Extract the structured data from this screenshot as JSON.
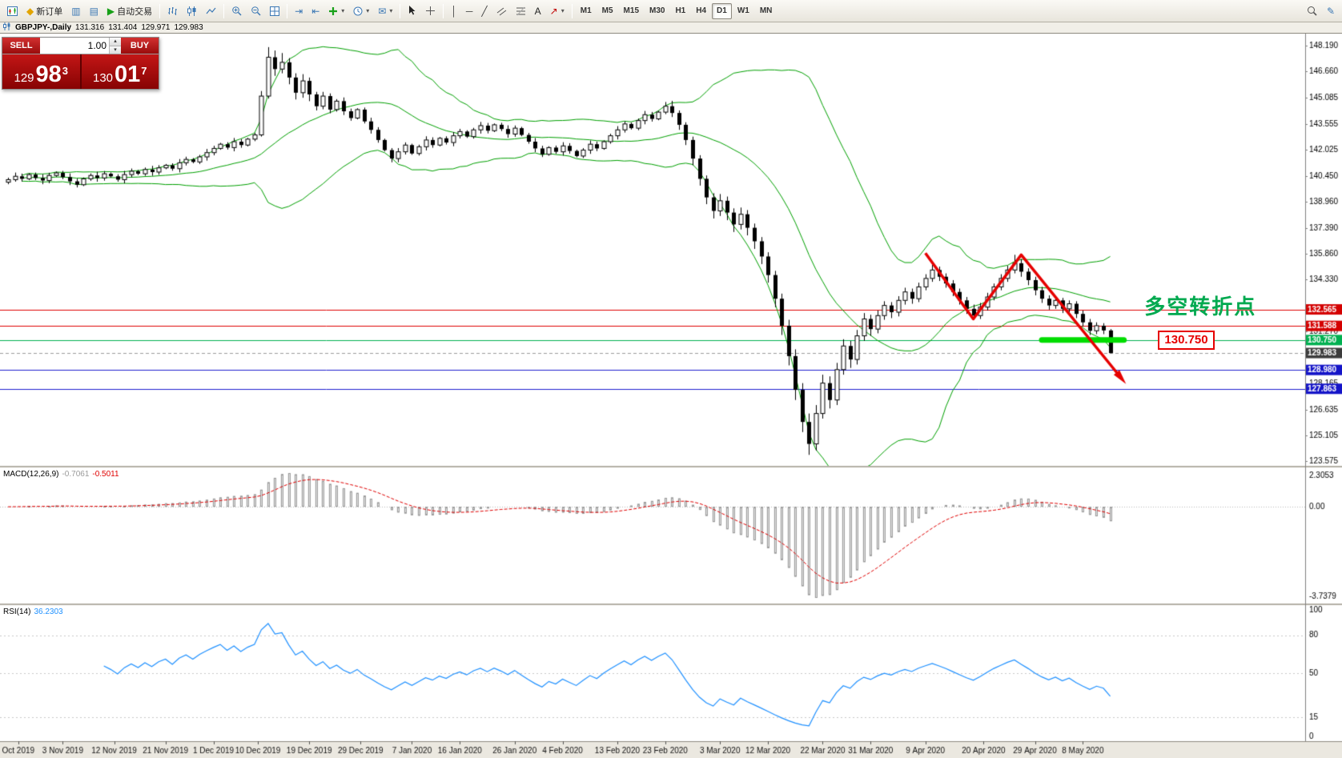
{
  "toolbar": {
    "new_order_label": "新订单",
    "auto_trading_label": "自动交易",
    "timeframes": [
      {
        "name": "timeframe-m1-button",
        "label": "M1"
      },
      {
        "name": "timeframe-m5-button",
        "label": "M5"
      },
      {
        "name": "timeframe-m15-button",
        "label": "M15"
      },
      {
        "name": "timeframe-m30-button",
        "label": "M30"
      },
      {
        "name": "timeframe-h1-button",
        "label": "H1"
      },
      {
        "name": "timeframe-h4-button",
        "label": "H4"
      },
      {
        "name": "timeframe-d1-button",
        "label": "D1",
        "active": true
      },
      {
        "name": "timeframe-w1-button",
        "label": "W1"
      },
      {
        "name": "timeframe-mn-button",
        "label": "MN"
      }
    ]
  },
  "icons": {
    "caret": "▾",
    "up": "▴",
    "down": "▾",
    "diamond": "◆",
    "play": "▶",
    "grid": "▤",
    "grid2": "▥",
    "vline": "│",
    "hline": "─",
    "trend": "╱",
    "text": "A",
    "arrow": "↗",
    "envelope": "✉",
    "pencil": "✎",
    "autoscroll": "⇥",
    "shift": "⇤"
  },
  "chart_header": {
    "symbol_period": "GBPJPY-,Daily",
    "open": "131.316",
    "high": "131.404",
    "low": "129.971",
    "close": "129.983"
  },
  "one_click": {
    "sell_label": "SELL",
    "buy_label": "BUY",
    "volume": "1.00",
    "sell_prefix": "129",
    "sell_big": "98",
    "sell_sup": "3",
    "buy_prefix": "130",
    "buy_big": "01",
    "buy_sup": "7"
  },
  "annotations": {
    "turning_point": "多空转折点",
    "level_label": "130.750"
  },
  "chart_data": {
    "type": "candlestick",
    "symbol": "GBPJPY",
    "period": "Daily",
    "colors": {
      "bull": "#ffffff",
      "bear": "#000000",
      "outline": "#000000",
      "bollinger": "#00A000",
      "resistance_red": "#e00000",
      "support_green": "#00b050",
      "support_blue": "#2020d0",
      "macd_signal": "#e00000",
      "macd_hist": "#e6e6e6",
      "rsi_line": "#1e90ff",
      "annotation_red": "#e60000",
      "annotation_green": "#00dd00",
      "current_badge": "#3c3c3c"
    },
    "y_axis": {
      "min": 123.3,
      "max": 148.9,
      "ticks": [
        148.19,
        146.66,
        145.085,
        143.555,
        142.025,
        140.45,
        138.96,
        137.39,
        135.86,
        134.33,
        131.27,
        128.165,
        126.635,
        125.105,
        123.575
      ],
      "levels": [
        {
          "price": 132.565,
          "color": "#e00000"
        },
        {
          "price": 131.588,
          "color": "#e00000"
        },
        {
          "price": 130.75,
          "color": "#00b050"
        },
        {
          "price": 128.98,
          "color": "#2020d0"
        },
        {
          "price": 127.863,
          "color": "#2020d0"
        }
      ],
      "badges": [
        {
          "price": 132.565,
          "text": "132.565",
          "bg": "#d40000"
        },
        {
          "price": 131.588,
          "text": "131.588",
          "bg": "#d40000"
        },
        {
          "price": 130.75,
          "text": "130.750",
          "bg": "#00b050"
        },
        {
          "price": 129.983,
          "text": "129.983",
          "bg": "#3c3c3c"
        },
        {
          "price": 128.98,
          "text": "128.980",
          "bg": "#1414c8"
        },
        {
          "price": 127.863,
          "text": "127.863",
          "bg": "#1414c8"
        }
      ],
      "current_price": 129.983
    },
    "x_axis": {
      "labels": [
        {
          "label": "Oct 2019",
          "i": 1.5
        },
        {
          "label": "3 Nov 2019",
          "i": 8
        },
        {
          "label": "12 Nov 2019",
          "i": 15.5
        },
        {
          "label": "21 Nov 2019",
          "i": 23
        },
        {
          "label": "1 Dec 2019",
          "i": 30
        },
        {
          "label": "10 Dec 2019",
          "i": 36.5
        },
        {
          "label": "19 Dec 2019",
          "i": 44
        },
        {
          "label": "29 Dec 2019",
          "i": 51.5
        },
        {
          "label": "7 Jan 2020",
          "i": 59
        },
        {
          "label": "16 Jan 2020",
          "i": 66
        },
        {
          "label": "26 Jan 2020",
          "i": 74
        },
        {
          "label": "4 Feb 2020",
          "i": 81
        },
        {
          "label": "13 Feb 2020",
          "i": 89
        },
        {
          "label": "23 Feb 2020",
          "i": 96
        },
        {
          "label": "3 Mar 2020",
          "i": 104
        },
        {
          "label": "12 Mar 2020",
          "i": 111
        },
        {
          "label": "22 Mar 2020",
          "i": 119
        },
        {
          "label": "31 Mar 2020",
          "i": 126
        },
        {
          "label": "9 Apr 2020",
          "i": 134
        },
        {
          "label": "20 Apr 2020",
          "i": 142.5
        },
        {
          "label": "29 Apr 2020",
          "i": 150
        },
        {
          "label": "8 May 2020",
          "i": 157
        }
      ]
    },
    "indicators": {
      "bollinger": {
        "period": 20,
        "deviation": 2
      },
      "macd": {
        "label": "MACD(12,26,9)",
        "main_value": "-0.7061",
        "signal_value": "-0.5011",
        "axis": [
          "2.3053",
          "0.00",
          "-3.7379"
        ]
      },
      "rsi": {
        "label": "RSI(14)",
        "value": "36.2303",
        "levels": [
          80,
          50,
          15
        ],
        "axis": [
          100,
          80,
          50,
          15,
          0
        ]
      }
    },
    "drawings": {
      "zigzag": [
        {
          "i": 134,
          "p": 135.9
        },
        {
          "i": 141,
          "p": 132.0
        },
        {
          "i": 148,
          "p": 135.8
        },
        {
          "i": 162.5,
          "p": 128.55
        }
      ],
      "support_bar": {
        "i1": 151,
        "i2": 163,
        "price": 130.75
      },
      "label_box": {
        "i": 168,
        "price": 130.75
      },
      "cn_text": {
        "i": 166,
        "p": 132.9
      }
    },
    "candles": [
      [
        140.1,
        140.37,
        139.98,
        140.25
      ],
      [
        140.25,
        140.67,
        140.13,
        140.45
      ],
      [
        140.45,
        140.61,
        140.14,
        140.3
      ],
      [
        140.3,
        140.63,
        140.22,
        140.55
      ],
      [
        140.55,
        140.67,
        140.23,
        140.35
      ],
      [
        140.35,
        140.57,
        139.98,
        140.2
      ],
      [
        140.2,
        140.66,
        140.04,
        140.5
      ],
      [
        140.5,
        140.73,
        140.42,
        140.65
      ],
      [
        140.65,
        140.77,
        140.28,
        140.4
      ],
      [
        140.4,
        140.62,
        139.93,
        140.15
      ],
      [
        140.15,
        140.31,
        139.79,
        139.95
      ],
      [
        139.95,
        140.38,
        139.87,
        140.3
      ],
      [
        140.3,
        140.62,
        140.18,
        140.5
      ],
      [
        140.5,
        140.72,
        140.13,
        140.35
      ],
      [
        140.35,
        140.76,
        140.19,
        140.6
      ],
      [
        140.6,
        140.68,
        140.37,
        140.45
      ],
      [
        140.45,
        140.57,
        140.13,
        140.25
      ],
      [
        140.25,
        140.77,
        140.03,
        140.55
      ],
      [
        140.55,
        140.91,
        140.39,
        140.75
      ],
      [
        140.75,
        140.83,
        140.52,
        140.6
      ],
      [
        140.6,
        140.97,
        140.48,
        140.85
      ],
      [
        140.85,
        141.07,
        140.48,
        140.7
      ],
      [
        140.7,
        141.11,
        140.54,
        140.95
      ],
      [
        140.95,
        141.18,
        140.87,
        141.1
      ],
      [
        141.1,
        141.22,
        140.78,
        140.9
      ],
      [
        140.9,
        141.47,
        140.68,
        141.25
      ],
      [
        141.25,
        141.61,
        141.09,
        141.45
      ],
      [
        141.45,
        141.53,
        141.22,
        141.3
      ],
      [
        141.3,
        141.72,
        141.18,
        141.6
      ],
      [
        141.6,
        142.07,
        141.38,
        141.85
      ],
      [
        141.85,
        142.26,
        141.69,
        142.1
      ],
      [
        142.1,
        142.43,
        142.02,
        142.35
      ],
      [
        142.35,
        142.47,
        142.03,
        142.15
      ],
      [
        142.15,
        142.72,
        141.93,
        142.5
      ],
      [
        142.5,
        142.66,
        142.14,
        142.3
      ],
      [
        142.3,
        142.73,
        142.22,
        142.65
      ],
      [
        142.65,
        143.02,
        142.53,
        142.9
      ],
      [
        142.9,
        145.5,
        142.8,
        145.2
      ],
      [
        145.2,
        148.1,
        145.05,
        147.5
      ],
      [
        147.5,
        147.9,
        146.4,
        146.8
      ],
      [
        146.8,
        147.75,
        146.55,
        147.2
      ],
      [
        147.2,
        147.45,
        145.9,
        146.3
      ],
      [
        146.3,
        146.55,
        145.0,
        145.4
      ],
      [
        145.4,
        146.5,
        145.1,
        146.1
      ],
      [
        146.1,
        146.3,
        144.9,
        145.3
      ],
      [
        145.3,
        145.45,
        144.35,
        144.6
      ],
      [
        144.6,
        145.45,
        144.42,
        145.2
      ],
      [
        145.2,
        145.36,
        144.18,
        144.4
      ],
      [
        144.4,
        145.02,
        144.28,
        144.9
      ],
      [
        144.9,
        145.12,
        144.08,
        144.3
      ],
      [
        144.3,
        144.46,
        143.74,
        143.9
      ],
      [
        143.9,
        144.48,
        143.82,
        144.4
      ],
      [
        144.4,
        144.52,
        143.58,
        143.7
      ],
      [
        143.7,
        143.92,
        142.98,
        143.2
      ],
      [
        143.2,
        143.36,
        142.44,
        142.6
      ],
      [
        142.6,
        142.68,
        141.92,
        142.0
      ],
      [
        142.0,
        142.12,
        141.28,
        141.5
      ],
      [
        141.5,
        142.12,
        141.28,
        141.9
      ],
      [
        141.9,
        142.46,
        141.74,
        142.3
      ],
      [
        142.3,
        142.38,
        141.72,
        141.8
      ],
      [
        141.8,
        142.32,
        141.68,
        142.2
      ],
      [
        142.2,
        142.82,
        141.98,
        142.6
      ],
      [
        142.6,
        142.76,
        142.14,
        142.3
      ],
      [
        142.3,
        142.78,
        142.22,
        142.7
      ],
      [
        142.7,
        142.82,
        142.33,
        142.45
      ],
      [
        142.45,
        143.07,
        142.23,
        142.85
      ],
      [
        142.85,
        143.26,
        142.69,
        143.1
      ],
      [
        143.1,
        143.18,
        142.72,
        142.8
      ],
      [
        142.8,
        143.32,
        142.68,
        143.2
      ],
      [
        143.2,
        143.67,
        142.98,
        143.45
      ],
      [
        143.45,
        143.61,
        142.99,
        143.15
      ],
      [
        143.15,
        143.58,
        143.07,
        143.5
      ],
      [
        143.5,
        143.62,
        143.13,
        143.25
      ],
      [
        143.25,
        143.47,
        142.73,
        142.95
      ],
      [
        142.95,
        143.46,
        142.79,
        143.3
      ],
      [
        143.3,
        143.38,
        142.82,
        142.9
      ],
      [
        142.9,
        143.02,
        142.38,
        142.5
      ],
      [
        142.5,
        142.72,
        141.88,
        142.1
      ],
      [
        142.1,
        142.26,
        141.59,
        141.75
      ],
      [
        141.75,
        142.23,
        141.67,
        142.15
      ],
      [
        142.15,
        142.27,
        141.78,
        141.9
      ],
      [
        141.9,
        142.47,
        141.68,
        142.25
      ],
      [
        142.25,
        142.41,
        141.79,
        141.95
      ],
      [
        141.95,
        142.03,
        141.57,
        141.65
      ],
      [
        141.65,
        142.12,
        141.53,
        142.0
      ],
      [
        142.0,
        142.57,
        141.78,
        142.35
      ],
      [
        142.35,
        142.51,
        141.94,
        142.1
      ],
      [
        142.1,
        142.58,
        142.02,
        142.5
      ],
      [
        142.5,
        142.97,
        142.38,
        142.85
      ],
      [
        142.85,
        143.42,
        142.63,
        143.2
      ],
      [
        143.2,
        143.71,
        143.04,
        143.55
      ],
      [
        143.55,
        143.63,
        143.22,
        143.3
      ],
      [
        143.3,
        143.87,
        143.18,
        143.75
      ],
      [
        143.75,
        144.32,
        143.53,
        144.1
      ],
      [
        144.1,
        144.26,
        143.69,
        143.85
      ],
      [
        143.85,
        144.33,
        143.77,
        144.25
      ],
      [
        144.25,
        144.85,
        144.13,
        144.6
      ],
      [
        144.6,
        144.92,
        143.96,
        144.2
      ],
      [
        144.2,
        144.35,
        143.2,
        143.5
      ],
      [
        143.5,
        143.65,
        142.3,
        142.6
      ],
      [
        142.6,
        142.8,
        141.1,
        141.5
      ],
      [
        141.5,
        141.7,
        139.9,
        140.3
      ],
      [
        140.3,
        140.5,
        138.8,
        139.2
      ],
      [
        139.2,
        139.45,
        137.95,
        138.4
      ],
      [
        138.4,
        139.4,
        138.1,
        139.0
      ],
      [
        139.0,
        139.25,
        137.85,
        138.3
      ],
      [
        138.3,
        138.55,
        137.15,
        137.6
      ],
      [
        137.6,
        138.6,
        137.3,
        138.2
      ],
      [
        138.2,
        138.45,
        136.95,
        137.4
      ],
      [
        137.4,
        137.65,
        136.15,
        136.6
      ],
      [
        136.6,
        136.85,
        135.25,
        135.7
      ],
      [
        135.7,
        135.95,
        134.15,
        134.6
      ],
      [
        134.6,
        134.85,
        132.7,
        133.2
      ],
      [
        133.2,
        133.5,
        131.05,
        131.6
      ],
      [
        131.6,
        131.95,
        129.25,
        129.8
      ],
      [
        129.8,
        130.2,
        127.2,
        127.8
      ],
      [
        127.8,
        128.2,
        125.3,
        125.9
      ],
      [
        125.9,
        126.4,
        123.95,
        124.6
      ],
      [
        124.6,
        126.9,
        124.2,
        126.4
      ],
      [
        126.4,
        128.7,
        126.1,
        128.2
      ],
      [
        128.2,
        128.6,
        126.7,
        127.2
      ],
      [
        127.2,
        129.4,
        126.9,
        129.0
      ],
      [
        129.0,
        130.8,
        128.7,
        130.4
      ],
      [
        130.4,
        130.7,
        129.1,
        129.6
      ],
      [
        129.6,
        131.35,
        129.3,
        131.0
      ],
      [
        131.0,
        132.35,
        130.7,
        132.0
      ],
      [
        132.0,
        132.25,
        131.0,
        131.4
      ],
      [
        131.4,
        132.5,
        131.15,
        132.2
      ],
      [
        132.2,
        133.05,
        131.95,
        132.8
      ],
      [
        132.8,
        133.0,
        132.05,
        132.4
      ],
      [
        132.4,
        133.35,
        132.15,
        133.1
      ],
      [
        133.1,
        133.85,
        132.85,
        133.6
      ],
      [
        133.6,
        133.8,
        132.9,
        133.2
      ],
      [
        133.2,
        134.15,
        133.0,
        133.9
      ],
      [
        133.9,
        134.65,
        133.7,
        134.4
      ],
      [
        134.4,
        135.2,
        134.2,
        134.9
      ],
      [
        134.9,
        135.1,
        134.25,
        134.5
      ],
      [
        134.5,
        134.7,
        133.85,
        134.1
      ],
      [
        134.1,
        134.3,
        133.35,
        133.6
      ],
      [
        133.6,
        133.8,
        132.85,
        133.1
      ],
      [
        133.1,
        133.3,
        132.3,
        132.6
      ],
      [
        132.6,
        132.85,
        131.95,
        132.2
      ],
      [
        132.2,
        132.95,
        132.0,
        132.7
      ],
      [
        132.7,
        133.55,
        132.5,
        133.3
      ],
      [
        133.3,
        134.1,
        133.1,
        133.9
      ],
      [
        133.9,
        134.65,
        133.7,
        134.4
      ],
      [
        134.4,
        135.15,
        134.2,
        134.9
      ],
      [
        134.9,
        135.8,
        134.7,
        135.3
      ],
      [
        135.3,
        135.55,
        134.5,
        134.8
      ],
      [
        134.8,
        135.0,
        134.0,
        134.3
      ],
      [
        134.3,
        134.5,
        133.4,
        133.7
      ],
      [
        133.7,
        133.9,
        132.95,
        133.2
      ],
      [
        133.2,
        133.4,
        132.55,
        132.8
      ],
      [
        132.8,
        133.3,
        132.6,
        133.1
      ],
      [
        133.1,
        133.25,
        132.35,
        132.6
      ],
      [
        132.6,
        133.1,
        132.4,
        132.9
      ],
      [
        132.9,
        133.05,
        132.05,
        132.3
      ],
      [
        132.3,
        132.5,
        131.55,
        131.8
      ],
      [
        131.8,
        132.0,
        131.05,
        131.3
      ],
      [
        131.3,
        131.8,
        131.1,
        131.6
      ],
      [
        131.6,
        131.75,
        131.1,
        131.32
      ],
      [
        131.32,
        131.4,
        129.97,
        129.98
      ]
    ]
  }
}
